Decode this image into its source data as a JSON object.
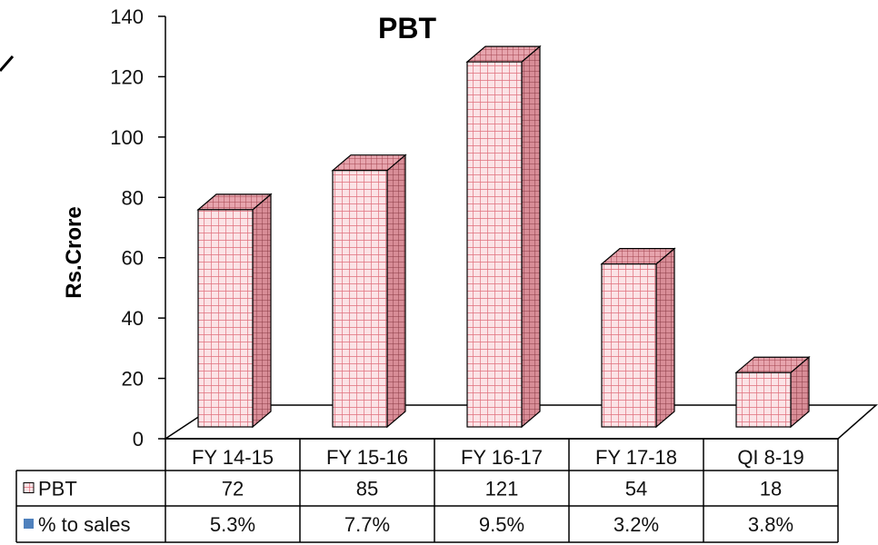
{
  "chart_data": {
    "type": "bar",
    "title": "PBT",
    "ylabel": "Rs.Crore",
    "ylim": [
      0,
      140
    ],
    "yticks": [
      0,
      20,
      40,
      60,
      80,
      100,
      120,
      140
    ],
    "categories": [
      "FY 14-15",
      "FY 15-16",
      "FY 16-17",
      "FY 17-18",
      "QI 8-19"
    ],
    "series": [
      {
        "name": "PBT",
        "values": [
          72,
          85,
          121,
          54,
          18
        ],
        "color": "#f2b8bf"
      },
      {
        "name": "% to sales",
        "values": [
          "5.3%",
          "7.7%",
          "9.5%",
          "3.2%",
          "3.8%"
        ],
        "color": "#4f81bd"
      }
    ],
    "data_table": true,
    "grid": false,
    "three_d": true
  }
}
